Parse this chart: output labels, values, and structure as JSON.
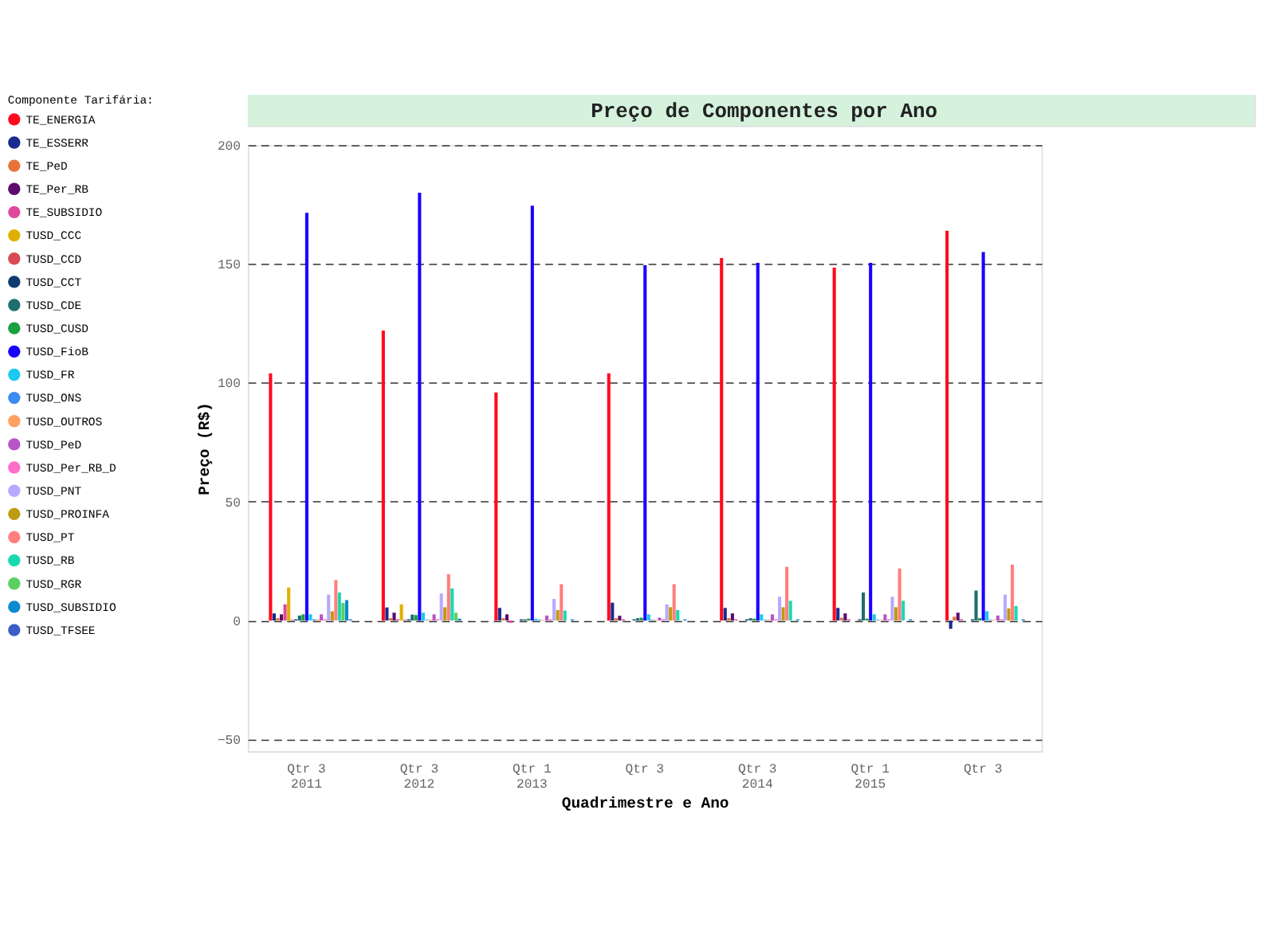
{
  "chart_data": {
    "type": "bar",
    "title": "Preço de Componentes por Ano",
    "xlabel": "Quadrimestre e Ano",
    "ylabel": "Preço (R$)",
    "legend_title": "Componente Tarifária:",
    "categories": [
      "Qtr 3\n2011",
      "Qtr 3\n2012",
      "Qtr 1\n2013",
      "Qtr 3",
      "Qtr 3\n2014",
      "Qtr 1\n2015",
      "Qtr 3"
    ],
    "ylim": [
      -55,
      200
    ],
    "yticks": [
      -50,
      0,
      50,
      100,
      150,
      200
    ],
    "grid": "y",
    "legend": "left",
    "series": [
      {
        "name": "TE_ENERGIA",
        "color": "#ff0a1e",
        "values": [
          104,
          122,
          96,
          104,
          152.5,
          148.5,
          164
        ]
      },
      {
        "name": "TE_ESSERR",
        "color": "#1a2a8f",
        "values": [
          3,
          5.5,
          5.3,
          7.5,
          5.3,
          5.3,
          -3.5
        ]
      },
      {
        "name": "TE_PeD",
        "color": "#e8733a",
        "values": [
          1,
          1,
          1,
          1,
          1,
          1.2,
          1.6
        ]
      },
      {
        "name": "TE_Per_RB",
        "color": "#5c0a6e",
        "values": [
          2.6,
          3.3,
          2.6,
          2,
          3,
          3,
          3.3
        ]
      },
      {
        "name": "TE_SUBSIDIO",
        "color": "#e0489e",
        "values": [
          6.8,
          0.5,
          -1,
          0.5,
          0.5,
          0.5,
          0.5
        ]
      },
      {
        "name": "TUSD_CCC",
        "color": "#e0b000",
        "values": [
          13.9,
          6.8,
          0,
          0,
          0,
          0,
          0
        ]
      },
      {
        "name": "TUSD_CCD",
        "color": "#d94a55",
        "values": [
          0.3,
          0.3,
          0,
          0,
          0,
          0,
          0
        ]
      },
      {
        "name": "TUSD_CCT",
        "color": "#0d3b6e",
        "values": [
          0.5,
          0.5,
          0.5,
          0.5,
          0.5,
          0.5,
          0.5
        ]
      },
      {
        "name": "TUSD_CDE",
        "color": "#1e6e6e",
        "values": [
          2.1,
          2.5,
          0.5,
          1,
          1,
          11.8,
          12.6
        ]
      },
      {
        "name": "TUSD_CUSD",
        "color": "#1aa040",
        "values": [
          2.6,
          2.3,
          0.8,
          1.2,
          0.8,
          0.8,
          1
        ]
      },
      {
        "name": "TUSD_FioB",
        "color": "#1a00ff",
        "values": [
          171.5,
          180,
          174.5,
          149.5,
          150.5,
          150.5,
          155
        ]
      },
      {
        "name": "TUSD_FR",
        "color": "#1ac8f0",
        "values": [
          2.6,
          3.3,
          0.7,
          2.6,
          2.6,
          2.6,
          3.9
        ]
      },
      {
        "name": "TUSD_ONS",
        "color": "#3b8cf0",
        "values": [
          0.5,
          0.3,
          0.3,
          0.3,
          0.3,
          0.3,
          0.3
        ]
      },
      {
        "name": "TUSD_OUTROS",
        "color": "#ffa060",
        "values": [
          0.5,
          0.3,
          0.3,
          0.3,
          0.3,
          0.3,
          0.3
        ]
      },
      {
        "name": "TUSD_PeD",
        "color": "#b855c8",
        "values": [
          2.6,
          2.6,
          2.1,
          1.2,
          2.6,
          2.6,
          2.1
        ]
      },
      {
        "name": "TUSD_Per_RB_D",
        "color": "#ff6ec8",
        "values": [
          0.5,
          0.5,
          0.5,
          0.5,
          0.5,
          0.5,
          0.5
        ]
      },
      {
        "name": "TUSD_PNT",
        "color": "#b9a8ff",
        "values": [
          10.9,
          11.4,
          9.1,
          6.8,
          10,
          10,
          10.9
        ]
      },
      {
        "name": "TUSD_PROINFA",
        "color": "#c09a10",
        "values": [
          3.9,
          5.6,
          4.4,
          5.6,
          5.6,
          5.6,
          5.1
        ]
      },
      {
        "name": "TUSD_PT",
        "color": "#ff7f7f",
        "values": [
          17,
          19.5,
          15.3,
          15.3,
          22.6,
          21.9,
          23.5
        ]
      },
      {
        "name": "TUSD_RB",
        "color": "#1ad9b0",
        "values": [
          11.8,
          13.5,
          4.2,
          4.4,
          8.3,
          8.3,
          6.1
        ]
      },
      {
        "name": "TUSD_RGR",
        "color": "#5ad060",
        "values": [
          7.4,
          3.3,
          0,
          0,
          0,
          0,
          0
        ]
      },
      {
        "name": "TUSD_SUBSIDIO",
        "color": "#0a8ad0",
        "values": [
          8.6,
          0.8,
          0.5,
          0.5,
          0.5,
          0.5,
          0.5
        ]
      },
      {
        "name": "TUSD_TFSEE",
        "color": "#3b5cc8",
        "values": [
          0.5,
          0,
          0,
          0,
          0,
          0,
          0
        ]
      }
    ]
  }
}
